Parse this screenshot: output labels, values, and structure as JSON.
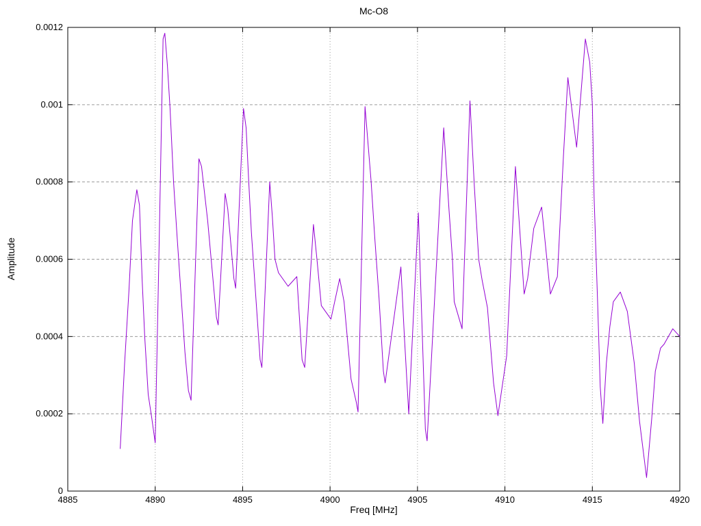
{
  "title": "Mc-O8",
  "chart_data": {
    "type": "line",
    "title": "Mc-O8",
    "xlabel": "Freq [MHz]",
    "ylabel": "Amplitude",
    "xlim": [
      4885,
      4920
    ],
    "ylim": [
      0,
      0.0012
    ],
    "grid": true,
    "legend": "none",
    "line_color": "#9400d3",
    "grid_color": "#9a9a9a",
    "border_color": "#000000",
    "background": "#ffffff",
    "x_ticks": {
      "values": [
        4885,
        4890,
        4895,
        4900,
        4905,
        4910,
        4915,
        4920
      ],
      "labels": [
        "4885",
        "4890",
        "4895",
        "4900",
        "4905",
        "4910",
        "4915",
        "4920"
      ]
    },
    "y_ticks": {
      "values": [
        0,
        0.0002,
        0.0004,
        0.0006,
        0.0008,
        0.001,
        0.0012
      ],
      "labels": [
        "0",
        "0.0002",
        "0.0004",
        "0.0006",
        "0.0008",
        "0.001",
        "0.0012"
      ]
    },
    "series": [
      {
        "name": "Mc-O8",
        "points": [
          [
            4888.0,
            0.00011
          ],
          [
            4888.25,
            0.00033
          ],
          [
            4888.5,
            0.00052
          ],
          [
            4888.7,
            0.0007
          ],
          [
            4888.95,
            0.00078
          ],
          [
            4889.1,
            0.00074
          ],
          [
            4889.25,
            0.00055
          ],
          [
            4889.4,
            0.0004
          ],
          [
            4889.6,
            0.00025
          ],
          [
            4889.8,
            0.00019
          ],
          [
            4890.0,
            0.000125
          ],
          [
            4890.2,
            0.00058
          ],
          [
            4890.45,
            0.00117
          ],
          [
            4890.55,
            0.001185
          ],
          [
            4890.7,
            0.0011
          ],
          [
            4890.85,
            0.00099
          ],
          [
            4891.05,
            0.0008
          ],
          [
            4891.25,
            0.00066
          ],
          [
            4891.7,
            0.00036
          ],
          [
            4891.9,
            0.00026
          ],
          [
            4892.05,
            0.000235
          ],
          [
            4892.5,
            0.00086
          ],
          [
            4892.65,
            0.00084
          ],
          [
            4893.0,
            0.0007
          ],
          [
            4893.5,
            0.00045
          ],
          [
            4893.6,
            0.00043
          ],
          [
            4894.0,
            0.00077
          ],
          [
            4894.15,
            0.00073
          ],
          [
            4894.5,
            0.00055
          ],
          [
            4894.6,
            0.000525
          ],
          [
            4895.05,
            0.00099
          ],
          [
            4895.2,
            0.00094
          ],
          [
            4895.35,
            0.0008
          ],
          [
            4895.5,
            0.00067
          ],
          [
            4896.0,
            0.00034
          ],
          [
            4896.1,
            0.00032
          ],
          [
            4896.55,
            0.0008
          ],
          [
            4896.7,
            0.00071
          ],
          [
            4896.85,
            0.0006
          ],
          [
            4897.05,
            0.000565
          ],
          [
            4897.6,
            0.00053
          ],
          [
            4898.1,
            0.000555
          ],
          [
            4898.4,
            0.00034
          ],
          [
            4898.55,
            0.00032
          ],
          [
            4899.05,
            0.00069
          ],
          [
            4899.25,
            0.0006
          ],
          [
            4899.5,
            0.00048
          ],
          [
            4900.05,
            0.000445
          ],
          [
            4900.55,
            0.00055
          ],
          [
            4900.8,
            0.00049
          ],
          [
            4901.2,
            0.00029
          ],
          [
            4901.5,
            0.00023
          ],
          [
            4901.6,
            0.000205
          ],
          [
            4902.0,
            0.000995
          ],
          [
            4902.35,
            0.0008
          ],
          [
            4902.55,
            0.00066
          ],
          [
            4902.8,
            0.0005
          ],
          [
            4903.05,
            0.00031
          ],
          [
            4903.15,
            0.00028
          ],
          [
            4904.05,
            0.00058
          ],
          [
            4904.25,
            0.0004
          ],
          [
            4904.5,
            0.0002
          ],
          [
            4905.05,
            0.00072
          ],
          [
            4905.45,
            0.00016
          ],
          [
            4905.55,
            0.00013
          ],
          [
            4905.9,
            0.00043
          ],
          [
            4906.5,
            0.00094
          ],
          [
            4906.8,
            0.00073
          ],
          [
            4907.0,
            0.0006
          ],
          [
            4907.1,
            0.00049
          ],
          [
            4907.55,
            0.00042
          ],
          [
            4908.0,
            0.00101
          ],
          [
            4908.25,
            0.00079
          ],
          [
            4908.5,
            0.0006
          ],
          [
            4908.7,
            0.000545
          ],
          [
            4909.0,
            0.000475
          ],
          [
            4909.35,
            0.00028
          ],
          [
            4909.6,
            0.000195
          ],
          [
            4910.1,
            0.00035
          ],
          [
            4910.6,
            0.00084
          ],
          [
            4911.1,
            0.00051
          ],
          [
            4911.3,
            0.00055
          ],
          [
            4911.65,
            0.00068
          ],
          [
            4912.1,
            0.000735
          ],
          [
            4912.6,
            0.00051
          ],
          [
            4913.0,
            0.000555
          ],
          [
            4913.35,
            0.00087
          ],
          [
            4913.6,
            0.00107
          ],
          [
            4914.1,
            0.00089
          ],
          [
            4914.6,
            0.00117
          ],
          [
            4914.85,
            0.00111
          ],
          [
            4915.0,
            0.001
          ],
          [
            4915.1,
            0.00076
          ],
          [
            4915.3,
            0.00049
          ],
          [
            4915.45,
            0.00027
          ],
          [
            4915.6,
            0.000175
          ],
          [
            4915.8,
            0.00033
          ],
          [
            4916.0,
            0.000425
          ],
          [
            4916.2,
            0.00049
          ],
          [
            4916.6,
            0.000515
          ],
          [
            4917.0,
            0.000465
          ],
          [
            4917.4,
            0.00033
          ],
          [
            4917.7,
            0.00018
          ],
          [
            4918.1,
            3.5e-05
          ],
          [
            4918.4,
            0.00019
          ],
          [
            4918.6,
            0.00031
          ],
          [
            4918.9,
            0.00037
          ],
          [
            4919.1,
            0.00038
          ],
          [
            4919.6,
            0.00042
          ],
          [
            4920.0,
            0.0004
          ]
        ]
      }
    ]
  }
}
